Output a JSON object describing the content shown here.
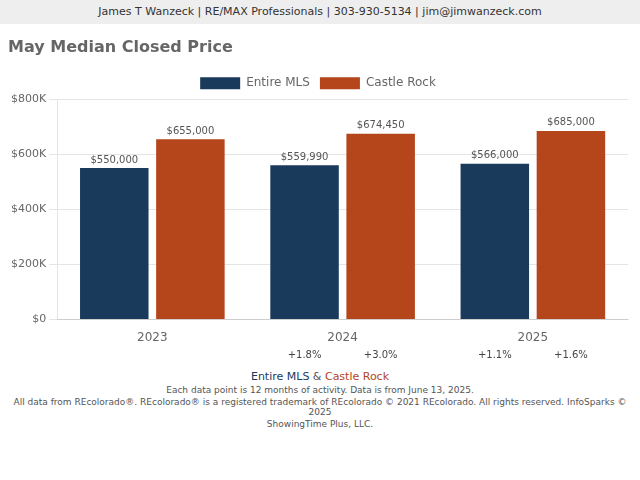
{
  "chart_data": {
    "type": "bar",
    "title": "May Median Closed Price",
    "annotations": [
      "James T Wanzeck | RE/MAX Professionals | 303-930-5134 | jim@jimwanzeck.com",
      "Entire MLS & Castle Rock",
      "Each data point is 12 months of activity. Data is from June 13, 2025.",
      "All data from REcolorado®. REcolorado® is a registered trademark of REcolorado © 2021 REcolorado. All rights reserved. InfoSparks © 2025",
      "ShowingTime Plus, LLC."
    ],
    "categories": [
      "2023",
      "2024",
      "2025"
    ],
    "series": [
      {
        "name": "Entire MLS",
        "color": "#1a3a5c",
        "values": [
          550000,
          559990,
          566000
        ],
        "value_labels": [
          "$550,000",
          "$559,990",
          "$566,000"
        ],
        "change_labels": [
          null,
          "+1.8%",
          "+1.1%"
        ]
      },
      {
        "name": "Castle Rock",
        "color": "#b5451b",
        "values": [
          655000,
          674450,
          685000
        ],
        "value_labels": [
          "$655,000",
          "$674,450",
          "$685,000"
        ],
        "change_labels": [
          null,
          "+3.0%",
          "+1.6%"
        ]
      }
    ],
    "ylim": [
      0,
      800000
    ],
    "yticks": [
      {
        "value": 0,
        "label": "$0"
      },
      {
        "value": 200000,
        "label": "$200K"
      },
      {
        "value": 400000,
        "label": "$400K"
      },
      {
        "value": 600000,
        "label": "$600K"
      },
      {
        "value": 800000,
        "label": "$800K"
      }
    ],
    "grid": true,
    "legend": "top",
    "data_labels": true
  }
}
